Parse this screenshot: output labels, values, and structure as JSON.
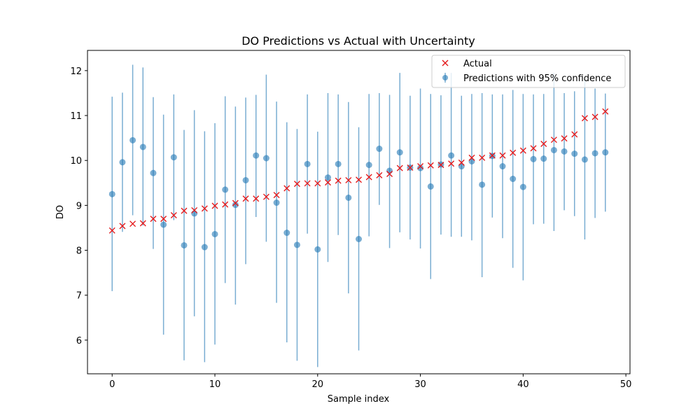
{
  "chart_data": {
    "type": "scatter",
    "title": "DO Predictions vs Actual with Uncertainty",
    "xlabel": "Sample index",
    "ylabel": "DO",
    "xlim": [
      -2.4,
      50.4
    ],
    "ylim": [
      5.25,
      12.45
    ],
    "xticks": [
      0,
      10,
      20,
      30,
      40,
      50
    ],
    "yticks": [
      6,
      7,
      8,
      9,
      10,
      11,
      12
    ],
    "grid": false,
    "legend_position": "top-right",
    "colors": {
      "actual": "#e41a1c",
      "prediction": "#1f77b4"
    },
    "series": [
      {
        "name": "Actual",
        "marker": "x",
        "x": [
          0,
          1,
          2,
          3,
          4,
          5,
          6,
          7,
          8,
          9,
          10,
          11,
          12,
          13,
          14,
          15,
          16,
          17,
          18,
          19,
          20,
          21,
          22,
          23,
          24,
          25,
          26,
          27,
          28,
          29,
          30,
          31,
          32,
          33,
          34,
          35,
          36,
          37,
          38,
          39,
          40,
          41,
          42,
          43,
          44,
          45,
          46,
          47,
          48
        ],
        "y": [
          8.44,
          8.54,
          8.59,
          8.6,
          8.7,
          8.7,
          8.78,
          8.88,
          8.89,
          8.93,
          8.99,
          9.02,
          9.05,
          9.15,
          9.15,
          9.19,
          9.23,
          9.38,
          9.48,
          9.49,
          9.49,
          9.51,
          9.55,
          9.56,
          9.57,
          9.63,
          9.67,
          9.7,
          9.83,
          9.84,
          9.87,
          9.89,
          9.9,
          9.93,
          9.95,
          10.06,
          10.06,
          10.11,
          10.11,
          10.17,
          10.22,
          10.27,
          10.37,
          10.46,
          10.49,
          10.58,
          10.94,
          10.97,
          11.09
        ]
      },
      {
        "name": "Predictions with 95% confidence",
        "marker": "o",
        "x": [
          0,
          1,
          2,
          3,
          4,
          5,
          6,
          7,
          8,
          9,
          10,
          11,
          12,
          13,
          14,
          15,
          16,
          17,
          18,
          19,
          20,
          21,
          22,
          23,
          24,
          25,
          26,
          27,
          28,
          29,
          30,
          31,
          32,
          33,
          34,
          35,
          36,
          37,
          38,
          39,
          40,
          41,
          42,
          43,
          44,
          45,
          46,
          47,
          48
        ],
        "y": [
          9.25,
          9.96,
          10.45,
          10.3,
          9.72,
          8.57,
          10.07,
          8.11,
          8.82,
          8.07,
          8.36,
          9.35,
          9.01,
          9.56,
          10.11,
          10.05,
          9.06,
          8.39,
          8.12,
          9.92,
          8.02,
          9.62,
          9.92,
          9.17,
          8.25,
          9.9,
          10.26,
          9.77,
          10.18,
          9.84,
          9.83,
          9.42,
          9.91,
          10.11,
          9.87,
          9.98,
          9.46,
          10.1,
          9.87,
          9.59,
          9.41,
          10.03,
          10.04,
          10.23,
          10.2,
          10.15,
          10.02,
          10.16,
          10.18
        ],
        "lower": [
          7.09,
          8.41,
          8.78,
          8.55,
          8.03,
          6.12,
          8.67,
          5.55,
          6.53,
          5.51,
          5.9,
          7.27,
          6.79,
          7.69,
          8.74,
          8.19,
          6.83,
          5.95,
          5.54,
          8.37,
          5.4,
          7.74,
          8.34,
          7.04,
          5.77,
          8.31,
          9.01,
          8.05,
          8.4,
          8.24,
          8.04,
          7.36,
          8.35,
          8.3,
          8.3,
          8.22,
          7.4,
          8.73,
          8.27,
          7.61,
          7.33,
          8.58,
          8.59,
          8.43,
          8.89,
          8.76,
          8.24,
          8.72,
          8.86
        ],
        "upper": [
          11.42,
          11.51,
          12.13,
          12.07,
          11.41,
          11.02,
          11.47,
          10.68,
          11.12,
          10.65,
          10.83,
          11.43,
          11.2,
          11.4,
          11.46,
          11.91,
          11.31,
          10.85,
          10.7,
          11.47,
          10.64,
          11.5,
          11.47,
          11.3,
          10.74,
          11.48,
          11.5,
          11.46,
          11.95,
          11.44,
          11.6,
          11.48,
          11.45,
          11.95,
          11.44,
          11.48,
          11.5,
          11.47,
          11.47,
          11.57,
          11.48,
          11.47,
          11.48,
          11.95,
          11.5,
          11.54,
          11.8,
          11.6,
          11.49
        ]
      }
    ]
  }
}
